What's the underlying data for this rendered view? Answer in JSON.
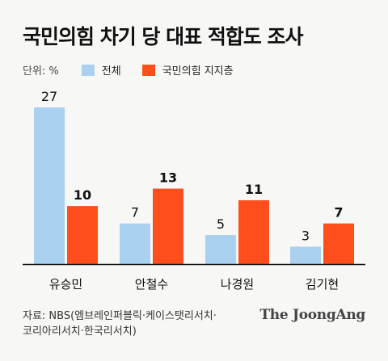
{
  "title": "국민의힘 차기 당 대표 적합도 조사",
  "source": {
    "line1": "자료: NBS(엠브레인퍼블릭·케이스탯리서치·",
    "line2": "코리아리서치·한국리서치)"
  },
  "brand": "The JoongAng",
  "colors": {
    "all": "#a9d0ef",
    "party": "#fe4e1b",
    "baseline": "#111111"
  },
  "chart_data": {
    "type": "bar",
    "unit_label": "단위: %",
    "categories": [
      "유승민",
      "안철수",
      "나경원",
      "김기현"
    ],
    "series": [
      {
        "name": "전체",
        "values": [
          27,
          7,
          5,
          3
        ]
      },
      {
        "name": "국민의힘 지지층",
        "values": [
          10,
          13,
          11,
          7
        ]
      }
    ],
    "ylim": [
      0,
      27
    ],
    "legend": "top-left",
    "grid": false
  }
}
